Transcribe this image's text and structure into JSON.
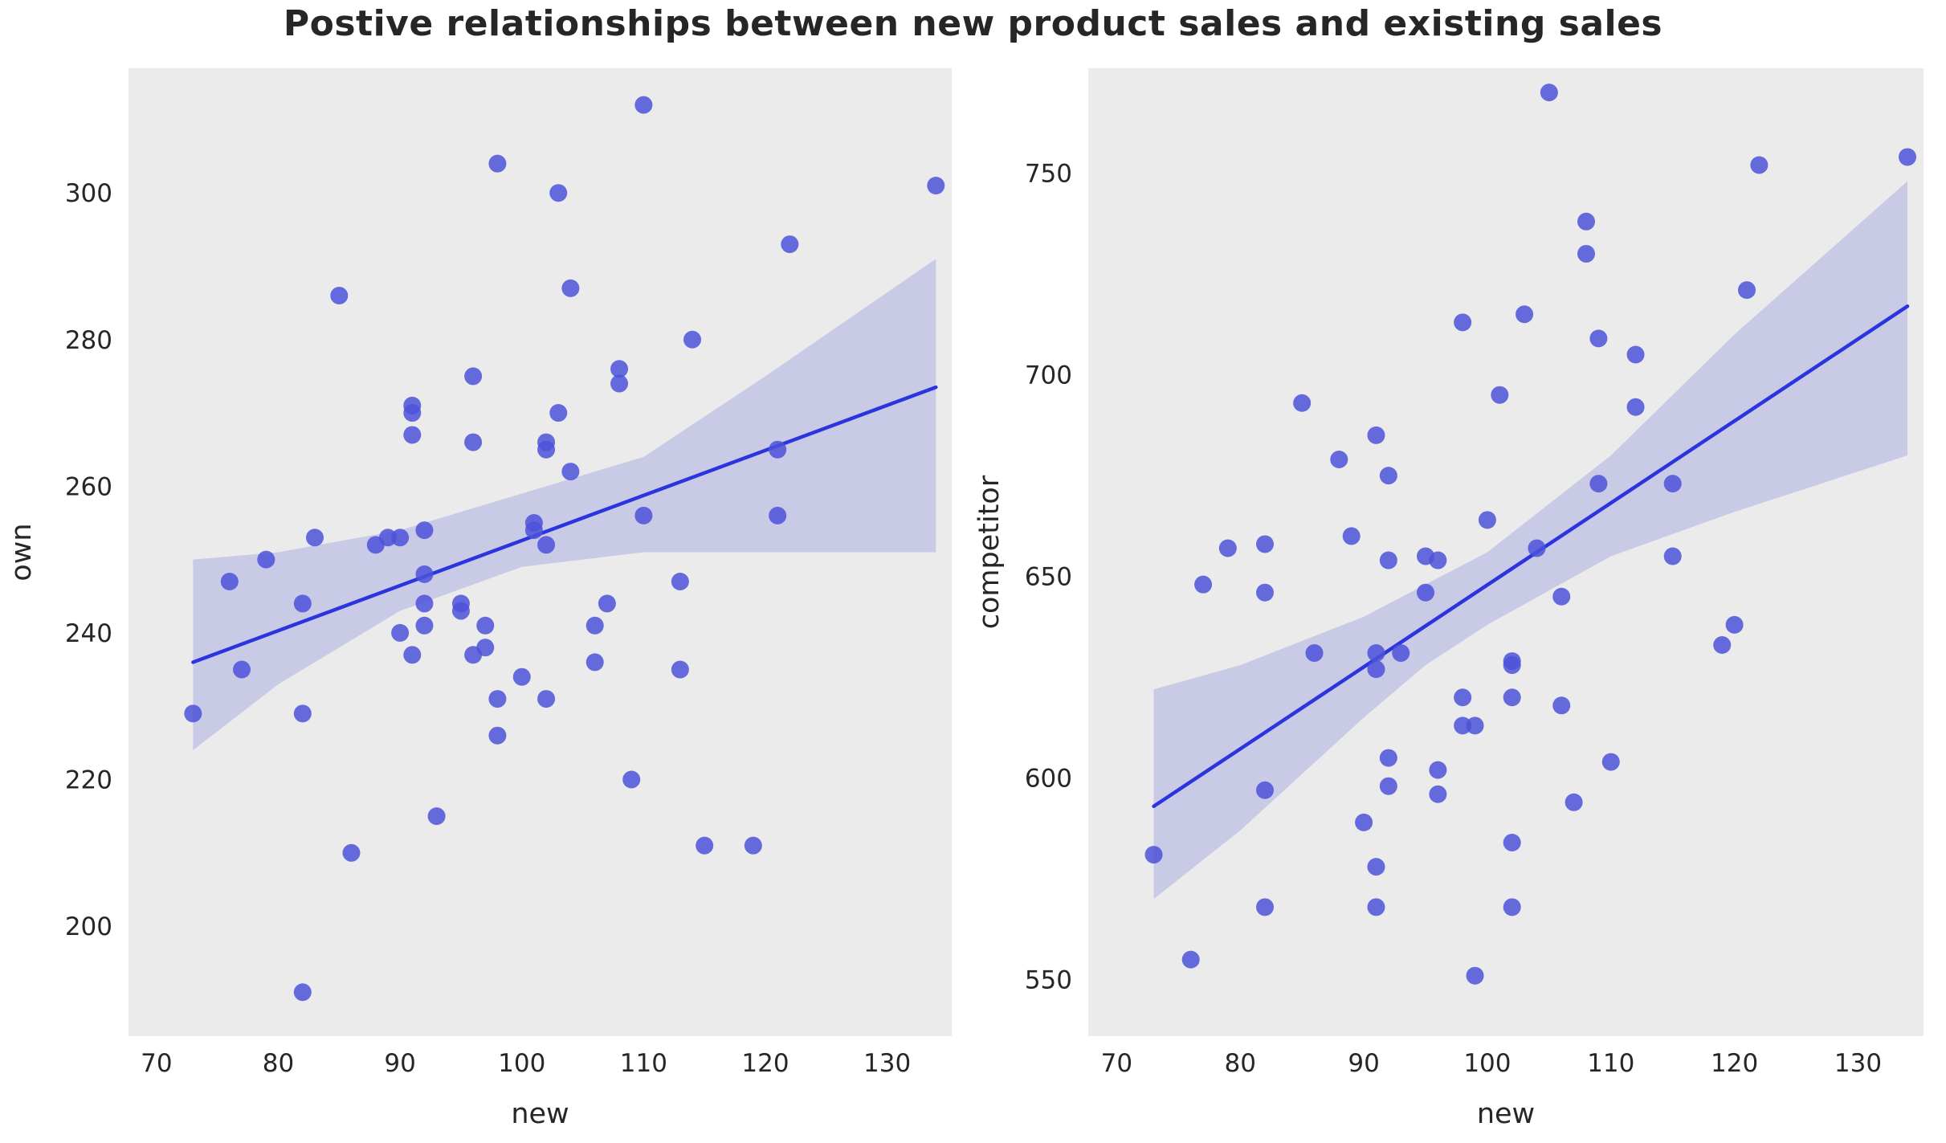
{
  "title": "Postive relationships between new product sales and existing sales",
  "colors": {
    "plot_bg": "#ebebeb",
    "point": "#4c52d9",
    "line": "#2b35de",
    "band": "#5055d5",
    "text": "#262626"
  },
  "chart_data": [
    {
      "type": "scatter",
      "xlabel": "new",
      "ylabel": "own",
      "xlim": [
        67.7,
        135.3
      ],
      "ylim": [
        185,
        317
      ],
      "xticks": [
        70,
        80,
        90,
        100,
        110,
        120,
        130
      ],
      "yticks": [
        200,
        220,
        240,
        260,
        280,
        300
      ],
      "legend": "none",
      "grid": false,
      "points": [
        [
          73,
          229
        ],
        [
          76,
          247
        ],
        [
          77,
          235
        ],
        [
          79,
          250
        ],
        [
          82,
          244
        ],
        [
          82,
          229
        ],
        [
          82,
          191
        ],
        [
          83,
          253
        ],
        [
          85,
          286
        ],
        [
          86,
          210
        ],
        [
          88,
          252
        ],
        [
          89,
          253
        ],
        [
          90,
          240
        ],
        [
          90,
          253
        ],
        [
          91,
          270
        ],
        [
          91,
          271
        ],
        [
          91,
          267
        ],
        [
          91,
          237
        ],
        [
          92,
          254
        ],
        [
          92,
          248
        ],
        [
          92,
          244
        ],
        [
          92,
          241
        ],
        [
          93,
          215
        ],
        [
          95,
          243
        ],
        [
          95,
          244
        ],
        [
          96,
          266
        ],
        [
          96,
          275
        ],
        [
          96,
          237
        ],
        [
          97,
          241
        ],
        [
          97,
          238
        ],
        [
          98,
          304
        ],
        [
          98,
          226
        ],
        [
          98,
          231
        ],
        [
          100,
          234
        ],
        [
          101,
          254
        ],
        [
          101,
          255
        ],
        [
          102,
          265
        ],
        [
          102,
          266
        ],
        [
          102,
          252
        ],
        [
          102,
          231
        ],
        [
          103,
          300
        ],
        [
          103,
          270
        ],
        [
          104,
          262
        ],
        [
          104,
          287
        ],
        [
          106,
          241
        ],
        [
          106,
          236
        ],
        [
          107,
          244
        ],
        [
          108,
          276
        ],
        [
          108,
          274
        ],
        [
          109,
          220
        ],
        [
          110,
          312
        ],
        [
          110,
          256
        ],
        [
          113,
          247
        ],
        [
          113,
          235
        ],
        [
          114,
          280
        ],
        [
          115,
          211
        ],
        [
          119,
          211
        ],
        [
          121,
          265
        ],
        [
          121,
          256
        ],
        [
          122,
          293
        ],
        [
          134,
          301
        ]
      ],
      "regression_line": {
        "x1": 73,
        "y1": 236,
        "x2": 134,
        "y2": 273.5
      },
      "confidence_band": [
        [
          73,
          224,
          250
        ],
        [
          80,
          233,
          251
        ],
        [
          90,
          243,
          254
        ],
        [
          100,
          249,
          259
        ],
        [
          110,
          251,
          264
        ],
        [
          120,
          251,
          275
        ],
        [
          127,
          251,
          283
        ],
        [
          134,
          251,
          291
        ]
      ]
    },
    {
      "type": "scatter",
      "xlabel": "new",
      "ylabel": "competitor",
      "xlim": [
        67.7,
        135.3
      ],
      "ylim": [
        536,
        776
      ],
      "xticks": [
        70,
        80,
        90,
        100,
        110,
        120,
        130
      ],
      "yticks": [
        550,
        600,
        650,
        700,
        750
      ],
      "legend": "none",
      "grid": false,
      "points": [
        [
          73,
          581
        ],
        [
          76,
          555
        ],
        [
          77,
          648
        ],
        [
          79,
          657
        ],
        [
          82,
          658
        ],
        [
          82,
          646
        ],
        [
          82,
          568
        ],
        [
          82,
          597
        ],
        [
          85,
          693
        ],
        [
          86,
          631
        ],
        [
          88,
          679
        ],
        [
          89,
          660
        ],
        [
          90,
          589
        ],
        [
          91,
          685
        ],
        [
          91,
          627
        ],
        [
          91,
          631
        ],
        [
          91,
          578
        ],
        [
          91,
          568
        ],
        [
          92,
          675
        ],
        [
          92,
          654
        ],
        [
          92,
          598
        ],
        [
          92,
          605
        ],
        [
          93,
          631
        ],
        [
          95,
          655
        ],
        [
          95,
          646
        ],
        [
          96,
          654
        ],
        [
          96,
          602
        ],
        [
          96,
          596
        ],
        [
          98,
          713
        ],
        [
          98,
          620
        ],
        [
          98,
          613
        ],
        [
          99,
          551
        ],
        [
          99,
          613
        ],
        [
          100,
          664
        ],
        [
          101,
          695
        ],
        [
          102,
          628
        ],
        [
          102,
          629
        ],
        [
          102,
          620
        ],
        [
          102,
          584
        ],
        [
          102,
          568
        ],
        [
          103,
          715
        ],
        [
          104,
          657
        ],
        [
          105,
          770
        ],
        [
          106,
          645
        ],
        [
          106,
          618
        ],
        [
          107,
          594
        ],
        [
          108,
          738
        ],
        [
          108,
          730
        ],
        [
          109,
          709
        ],
        [
          109,
          673
        ],
        [
          110,
          604
        ],
        [
          112,
          692
        ],
        [
          112,
          705
        ],
        [
          115,
          673
        ],
        [
          115,
          655
        ],
        [
          119,
          633
        ],
        [
          120,
          638
        ],
        [
          121,
          721
        ],
        [
          122,
          752
        ],
        [
          134,
          754
        ]
      ],
      "regression_line": {
        "x1": 73,
        "y1": 593,
        "x2": 134,
        "y2": 717
      },
      "confidence_band": [
        [
          73,
          570,
          622
        ],
        [
          80,
          587,
          628
        ],
        [
          90,
          615,
          640
        ],
        [
          95,
          628,
          648
        ],
        [
          100,
          638,
          656
        ],
        [
          110,
          655,
          680
        ],
        [
          120,
          666,
          710
        ],
        [
          134,
          680,
          748
        ]
      ]
    }
  ]
}
